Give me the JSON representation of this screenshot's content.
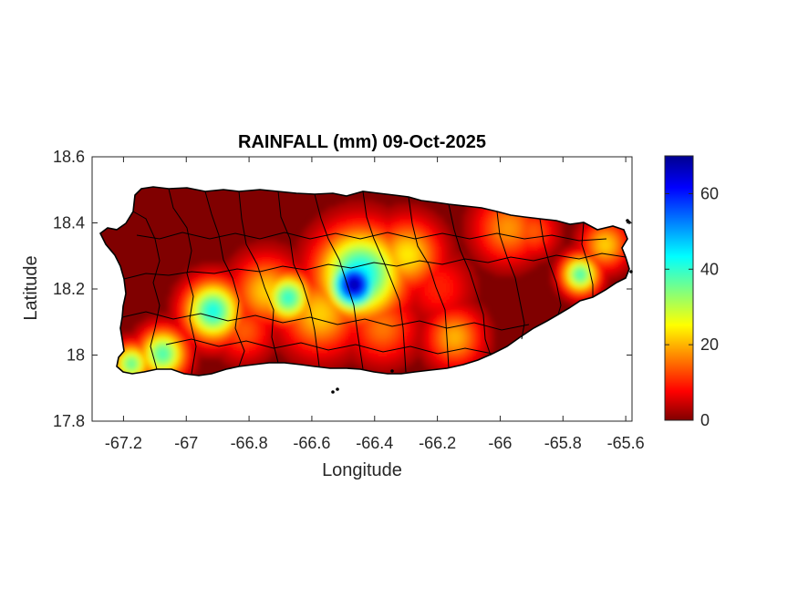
{
  "chart_data": {
    "type": "heatmap",
    "title": "RAINFALL (mm) 09-Oct-2025",
    "xlabel": "Longitude",
    "ylabel": "Latitude",
    "xlim": [
      -67.3,
      -65.58
    ],
    "ylim": [
      17.8,
      18.6
    ],
    "xticks": [
      -67.2,
      -67,
      -66.8,
      -66.6,
      -66.4,
      -66.2,
      -66,
      -65.8,
      -65.6
    ],
    "xtick_labels": [
      "-67.2",
      "-67",
      "-66.8",
      "-66.6",
      "-66.4",
      "-66.2",
      "-66",
      "-65.8",
      "-65.6"
    ],
    "yticks": [
      17.8,
      18,
      18.2,
      18.4,
      18.6
    ],
    "ytick_labels": [
      "17.8",
      "18",
      "18.2",
      "18.4",
      "18.6"
    ],
    "colorbar": {
      "colormap": "jet",
      "range": [
        0,
        70
      ],
      "ticks": [
        0,
        20,
        40,
        60
      ],
      "tick_labels": [
        "0",
        "20",
        "40",
        "60"
      ]
    },
    "rain_centers": [
      {
        "lon": -66.47,
        "lat": 18.21,
        "value": 68,
        "spread": 0.055
      },
      {
        "lon": -66.45,
        "lat": 18.24,
        "value": 45,
        "spread": 0.09
      },
      {
        "lon": -66.68,
        "lat": 18.17,
        "value": 40,
        "spread": 0.05
      },
      {
        "lon": -66.92,
        "lat": 18.13,
        "value": 42,
        "spread": 0.06
      },
      {
        "lon": -66.58,
        "lat": 18.12,
        "value": 22,
        "spread": 0.08
      },
      {
        "lon": -66.75,
        "lat": 18.19,
        "value": 22,
        "spread": 0.07
      },
      {
        "lon": -67.08,
        "lat": 18.0,
        "value": 38,
        "spread": 0.05
      },
      {
        "lon": -67.18,
        "lat": 17.97,
        "value": 36,
        "spread": 0.04
      },
      {
        "lon": -66.3,
        "lat": 18.3,
        "value": 24,
        "spread": 0.07
      },
      {
        "lon": -66.38,
        "lat": 18.08,
        "value": 16,
        "spread": 0.07
      },
      {
        "lon": -66.15,
        "lat": 18.05,
        "value": 20,
        "spread": 0.06
      },
      {
        "lon": -65.98,
        "lat": 18.38,
        "value": 18,
        "spread": 0.07
      },
      {
        "lon": -65.75,
        "lat": 18.24,
        "value": 38,
        "spread": 0.04
      },
      {
        "lon": -65.67,
        "lat": 18.33,
        "value": 22,
        "spread": 0.05
      },
      {
        "lon": -65.9,
        "lat": 18.37,
        "value": 14,
        "spread": 0.05
      },
      {
        "lon": -66.82,
        "lat": 18.07,
        "value": 14,
        "spread": 0.06
      },
      {
        "lon": -66.2,
        "lat": 18.2,
        "value": 10,
        "spread": 0.07
      }
    ],
    "colors": {
      "outline": "#000000",
      "axis": "#262626",
      "background": "#ffffff"
    }
  }
}
